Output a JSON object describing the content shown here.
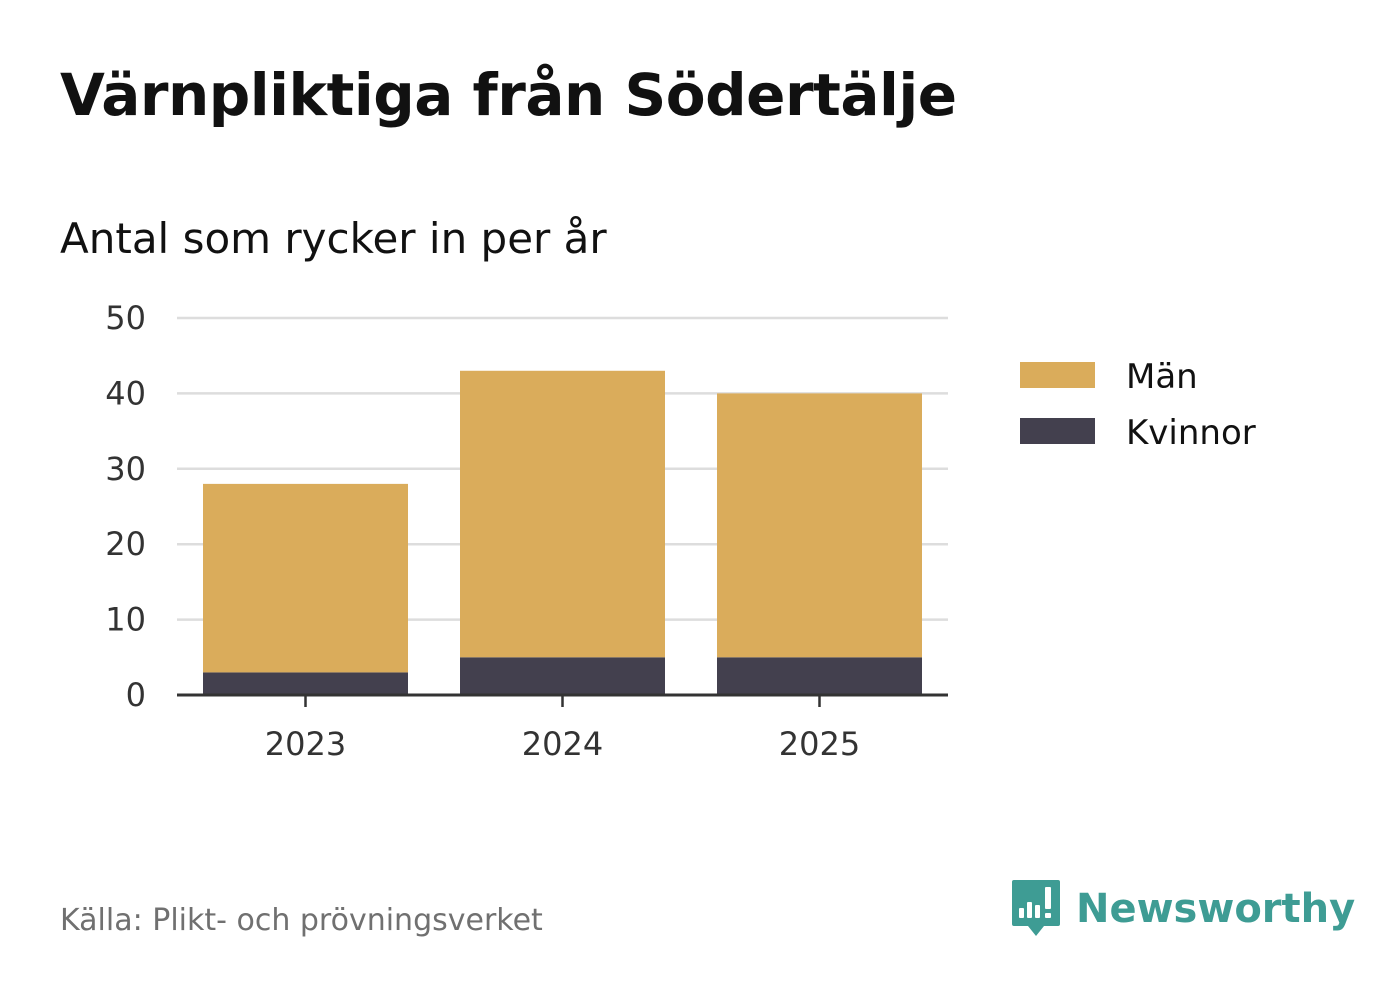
{
  "header": {
    "title": "Värnpliktiga från Södertälje",
    "subtitle": "Antal som rycker in per år"
  },
  "footer": {
    "source": "Källa: Plikt- och prövningsverket",
    "brand": "Newsworthy"
  },
  "colors": {
    "man": "#daac5b",
    "kvinnor": "#43404e",
    "grid": "#dddddd",
    "axis": "#333333",
    "brand": "#3e9c94"
  },
  "chart_data": {
    "type": "bar",
    "stacked": true,
    "title": "Värnpliktiga från Södertälje",
    "subtitle": "Antal som rycker in per år",
    "xlabel": "",
    "ylabel": "",
    "categories": [
      "2023",
      "2024",
      "2025"
    ],
    "series": [
      {
        "name": "Kvinnor",
        "values": [
          3,
          5,
          5
        ]
      },
      {
        "name": "Män",
        "values": [
          25,
          38,
          35
        ]
      }
    ],
    "ylim": [
      0,
      50
    ],
    "yticks": [
      0,
      10,
      20,
      30,
      40,
      50
    ],
    "grid": true,
    "legend": {
      "placement": "right",
      "entries": [
        "Män",
        "Kvinnor"
      ]
    }
  }
}
